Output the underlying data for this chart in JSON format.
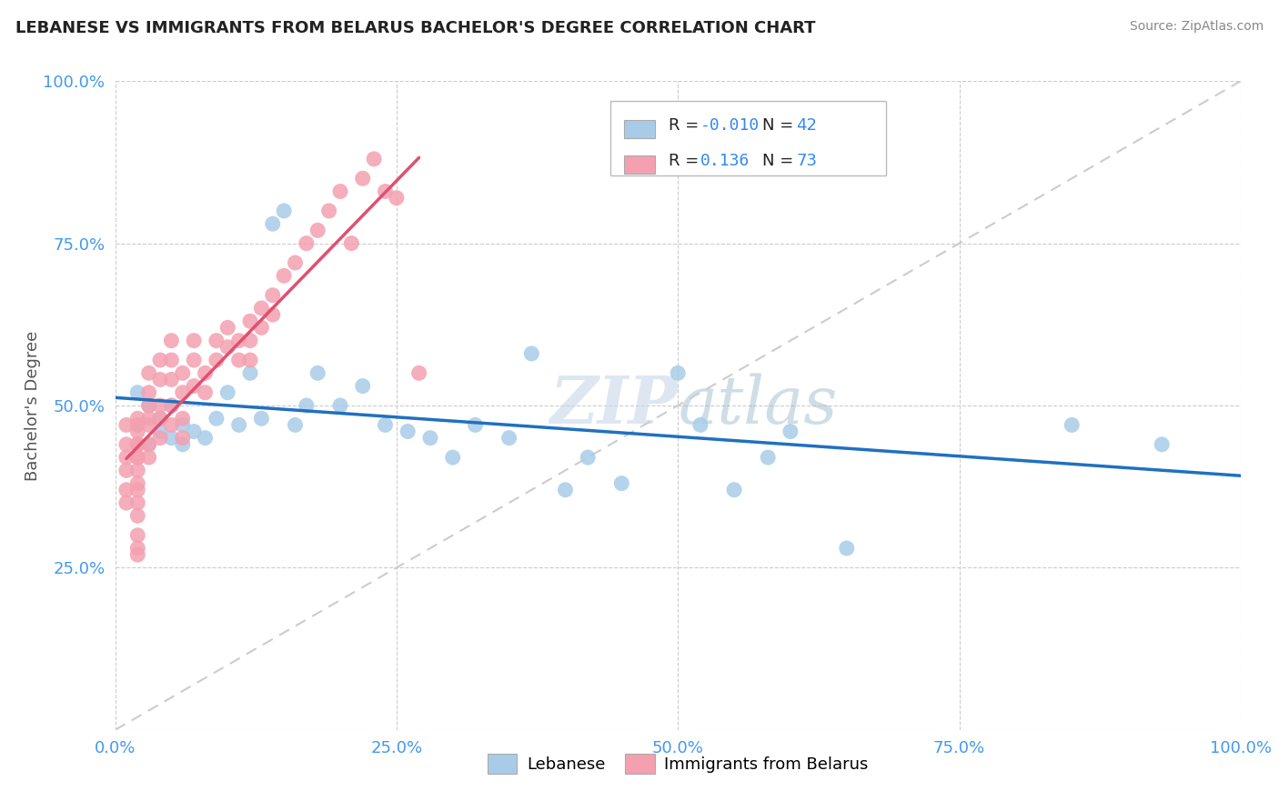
{
  "title": "LEBANESE VS IMMIGRANTS FROM BELARUS BACHELOR'S DEGREE CORRELATION CHART",
  "source": "Source: ZipAtlas.com",
  "ylabel": "Bachelor's Degree",
  "xlabel": "",
  "background_color": "#ffffff",
  "plot_bg_color": "#ffffff",
  "blue_color": "#a8cce8",
  "pink_color": "#f4a0b0",
  "blue_line_color": "#2070c0",
  "pink_line_color": "#e05070",
  "diagonal_color": "#cccccc",
  "R_blue": -0.01,
  "N_blue": 42,
  "R_pink": 0.136,
  "N_pink": 73,
  "xlim": [
    0.0,
    1.0
  ],
  "ylim": [
    0.0,
    1.0
  ],
  "xticks": [
    0.0,
    0.25,
    0.5,
    0.75,
    1.0
  ],
  "yticks": [
    0.0,
    0.25,
    0.5,
    0.75,
    1.0
  ],
  "xticklabels": [
    "0.0%",
    "25.0%",
    "50.0%",
    "75.0%",
    "100.0%"
  ],
  "yticklabels": [
    "",
    "25.0%",
    "50.0%",
    "75.0%",
    "100.0%"
  ],
  "legend_label_blue": "Lebanese",
  "legend_label_pink": "Immigrants from Belarus",
  "blue_x": [
    0.02,
    0.02,
    0.03,
    0.03,
    0.04,
    0.04,
    0.05,
    0.05,
    0.06,
    0.06,
    0.07,
    0.08,
    0.09,
    0.1,
    0.11,
    0.12,
    0.13,
    0.14,
    0.15,
    0.16,
    0.17,
    0.18,
    0.2,
    0.22,
    0.24,
    0.26,
    0.28,
    0.3,
    0.32,
    0.35,
    0.37,
    0.4,
    0.42,
    0.45,
    0.5,
    0.52,
    0.55,
    0.58,
    0.6,
    0.65,
    0.85,
    0.93
  ],
  "blue_y": [
    0.47,
    0.52,
    0.44,
    0.5,
    0.46,
    0.48,
    0.45,
    0.5,
    0.47,
    0.44,
    0.46,
    0.45,
    0.48,
    0.52,
    0.47,
    0.55,
    0.48,
    0.78,
    0.8,
    0.47,
    0.5,
    0.55,
    0.5,
    0.53,
    0.47,
    0.46,
    0.45,
    0.42,
    0.47,
    0.45,
    0.58,
    0.37,
    0.42,
    0.38,
    0.55,
    0.47,
    0.37,
    0.42,
    0.46,
    0.28,
    0.47,
    0.44
  ],
  "pink_x": [
    0.01,
    0.01,
    0.01,
    0.01,
    0.01,
    0.01,
    0.02,
    0.02,
    0.02,
    0.02,
    0.02,
    0.02,
    0.02,
    0.02,
    0.02,
    0.02,
    0.02,
    0.02,
    0.02,
    0.02,
    0.02,
    0.02,
    0.03,
    0.03,
    0.03,
    0.03,
    0.03,
    0.03,
    0.03,
    0.04,
    0.04,
    0.04,
    0.04,
    0.04,
    0.05,
    0.05,
    0.05,
    0.05,
    0.05,
    0.06,
    0.06,
    0.06,
    0.06,
    0.07,
    0.07,
    0.07,
    0.08,
    0.08,
    0.09,
    0.09,
    0.1,
    0.1,
    0.11,
    0.11,
    0.12,
    0.12,
    0.12,
    0.13,
    0.13,
    0.14,
    0.14,
    0.15,
    0.16,
    0.17,
    0.18,
    0.19,
    0.2,
    0.21,
    0.22,
    0.23,
    0.24,
    0.25,
    0.27
  ],
  "pink_y": [
    0.44,
    0.47,
    0.42,
    0.4,
    0.37,
    0.35,
    0.44,
    0.46,
    0.48,
    0.42,
    0.4,
    0.38,
    0.44,
    0.42,
    0.47,
    0.44,
    0.35,
    0.37,
    0.33,
    0.3,
    0.28,
    0.27,
    0.55,
    0.52,
    0.48,
    0.5,
    0.47,
    0.44,
    0.42,
    0.57,
    0.54,
    0.5,
    0.48,
    0.45,
    0.6,
    0.57,
    0.54,
    0.5,
    0.47,
    0.55,
    0.52,
    0.48,
    0.45,
    0.6,
    0.57,
    0.53,
    0.55,
    0.52,
    0.6,
    0.57,
    0.62,
    0.59,
    0.6,
    0.57,
    0.63,
    0.6,
    0.57,
    0.65,
    0.62,
    0.67,
    0.64,
    0.7,
    0.72,
    0.75,
    0.77,
    0.8,
    0.83,
    0.75,
    0.85,
    0.88,
    0.83,
    0.82,
    0.55
  ]
}
